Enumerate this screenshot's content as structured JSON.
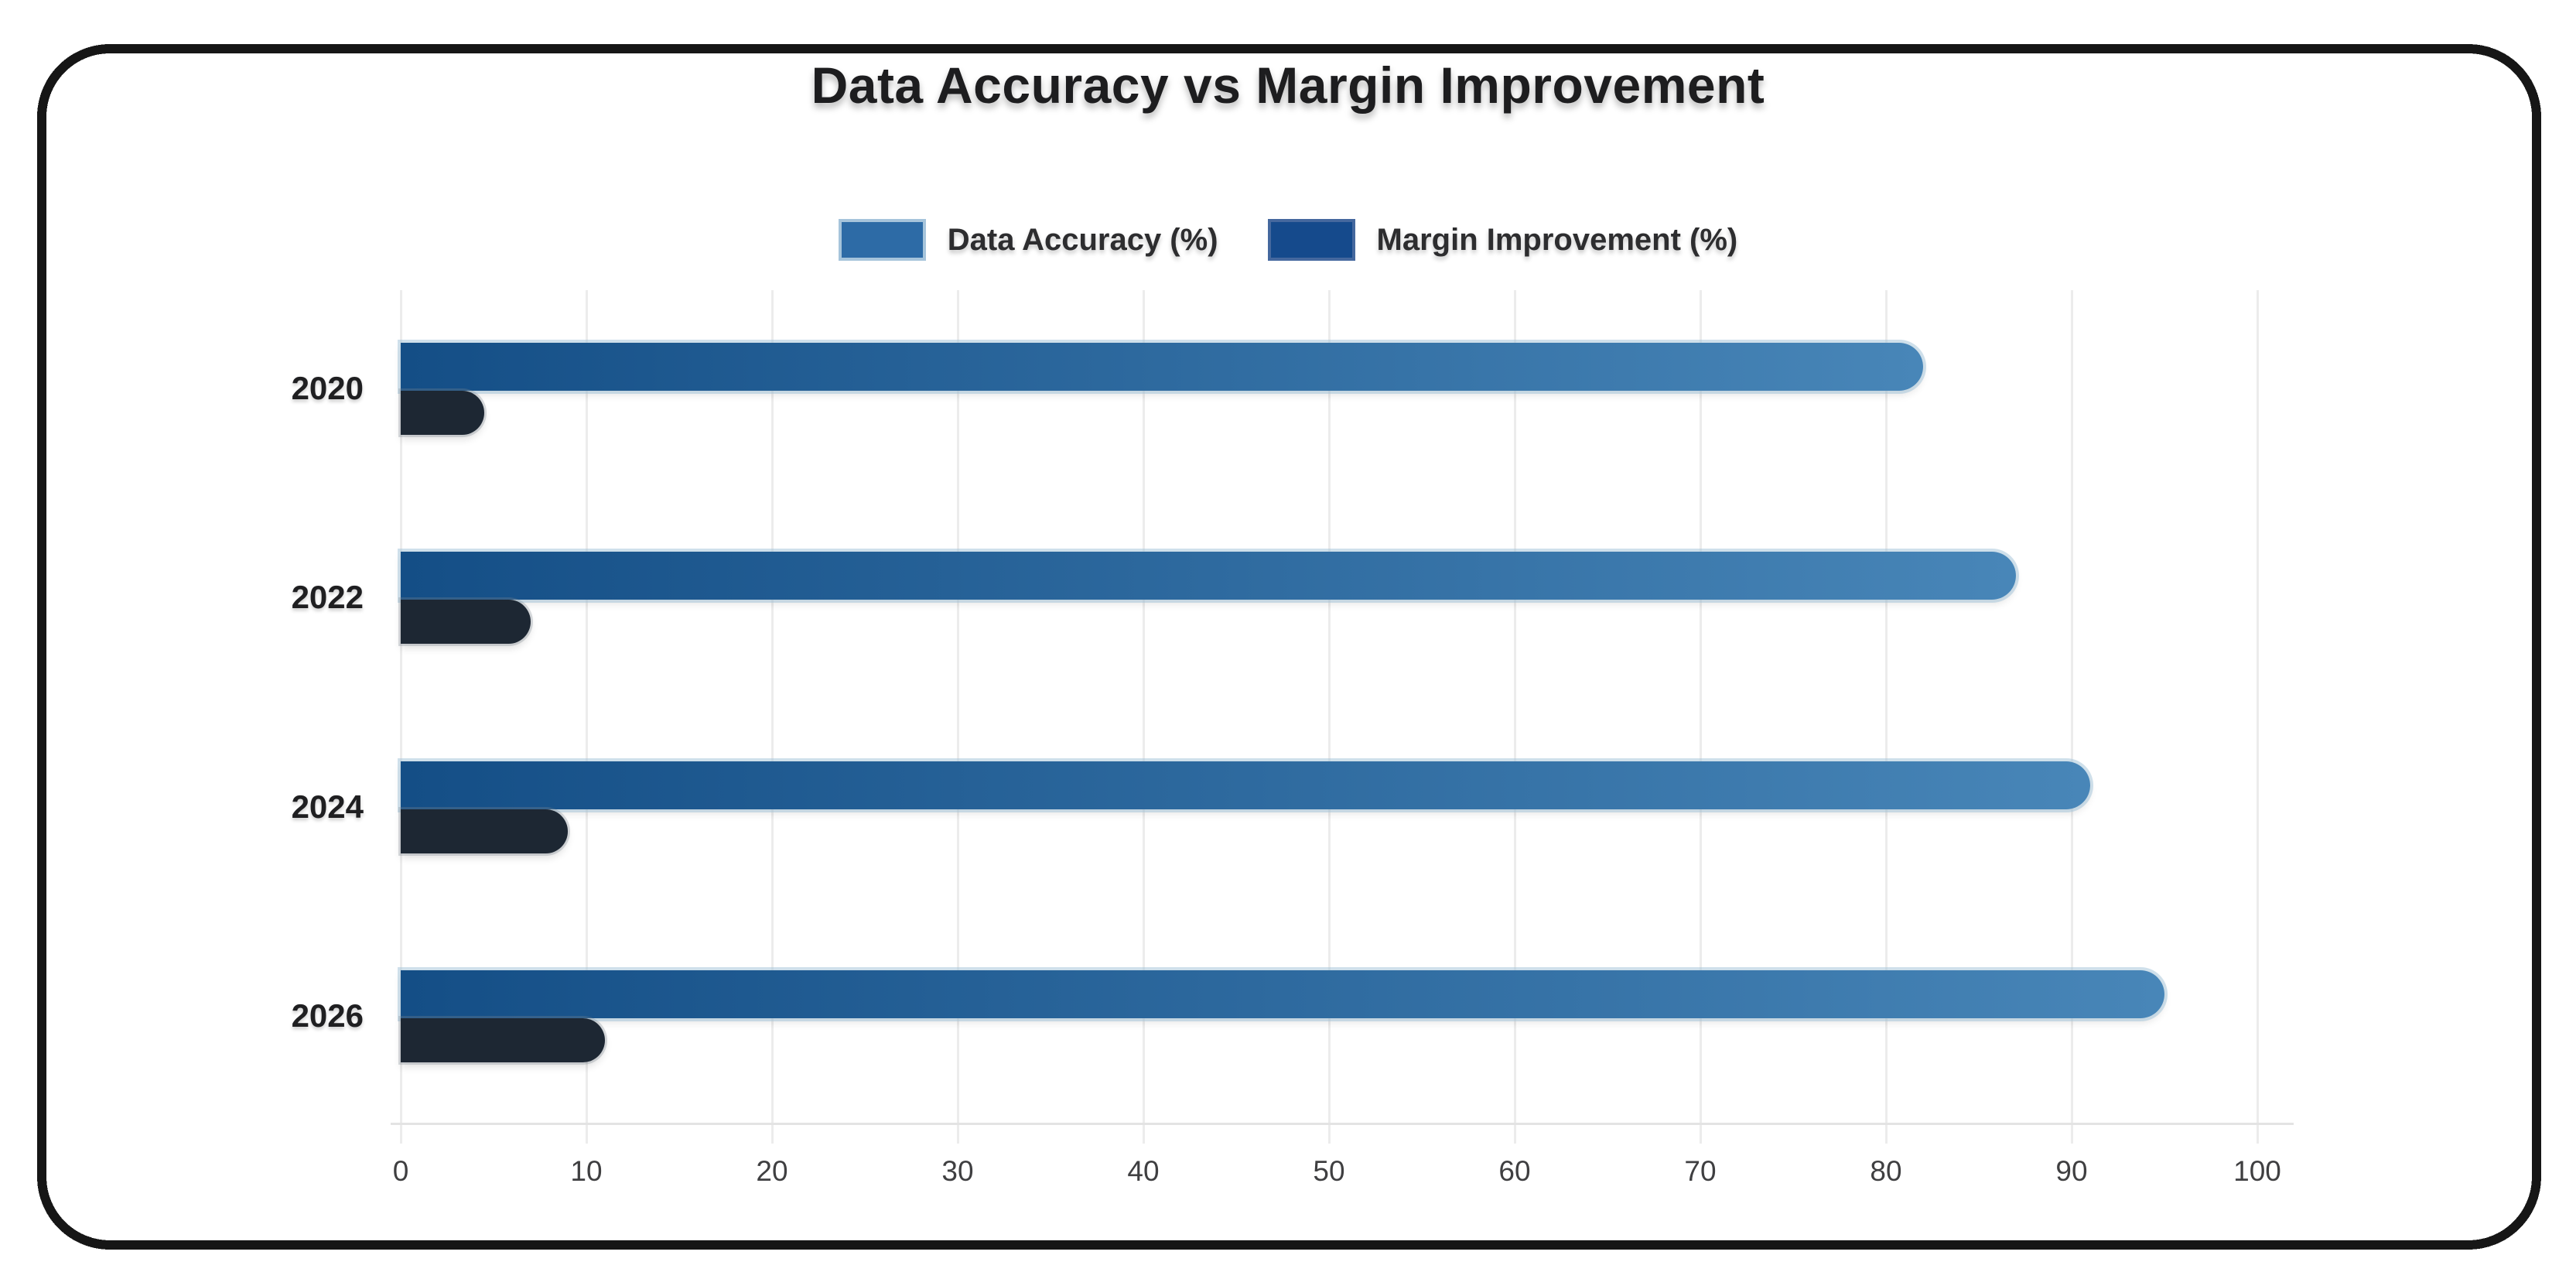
{
  "title": "Data Accuracy vs Margin Improvement",
  "legend": {
    "items": [
      {
        "label": "Data Accuracy (%)",
        "swatch": "#2d6ba6",
        "swatch_border": "#a6c4db"
      },
      {
        "label": "Margin Improvement (%)",
        "swatch": "#154a8c",
        "swatch_border": "#45689e"
      }
    ]
  },
  "chart_data": {
    "type": "bar",
    "orientation": "horizontal",
    "title": "Data Accuracy vs Margin Improvement",
    "categories": [
      "2020",
      "2022",
      "2024",
      "2026"
    ],
    "series": [
      {
        "name": "Data Accuracy (%)",
        "values": [
          82,
          87,
          91,
          95
        ]
      },
      {
        "name": "Margin Improvement (%)",
        "values": [
          4.5,
          7,
          9,
          11
        ]
      }
    ],
    "xlabel": "",
    "ylabel": "",
    "xlim": [
      0,
      100
    ],
    "x_ticks": [
      0,
      10,
      20,
      30,
      40,
      50,
      60,
      70,
      80,
      90,
      100
    ],
    "grid": "vertical",
    "legend_position": "top"
  },
  "colors": {
    "accuracy_gradient_start": "#144e86",
    "accuracy_gradient_end": "#4886b8",
    "margin_bar": "#1d2733",
    "grid_line": "#ececec",
    "card_border": "#161616"
  }
}
